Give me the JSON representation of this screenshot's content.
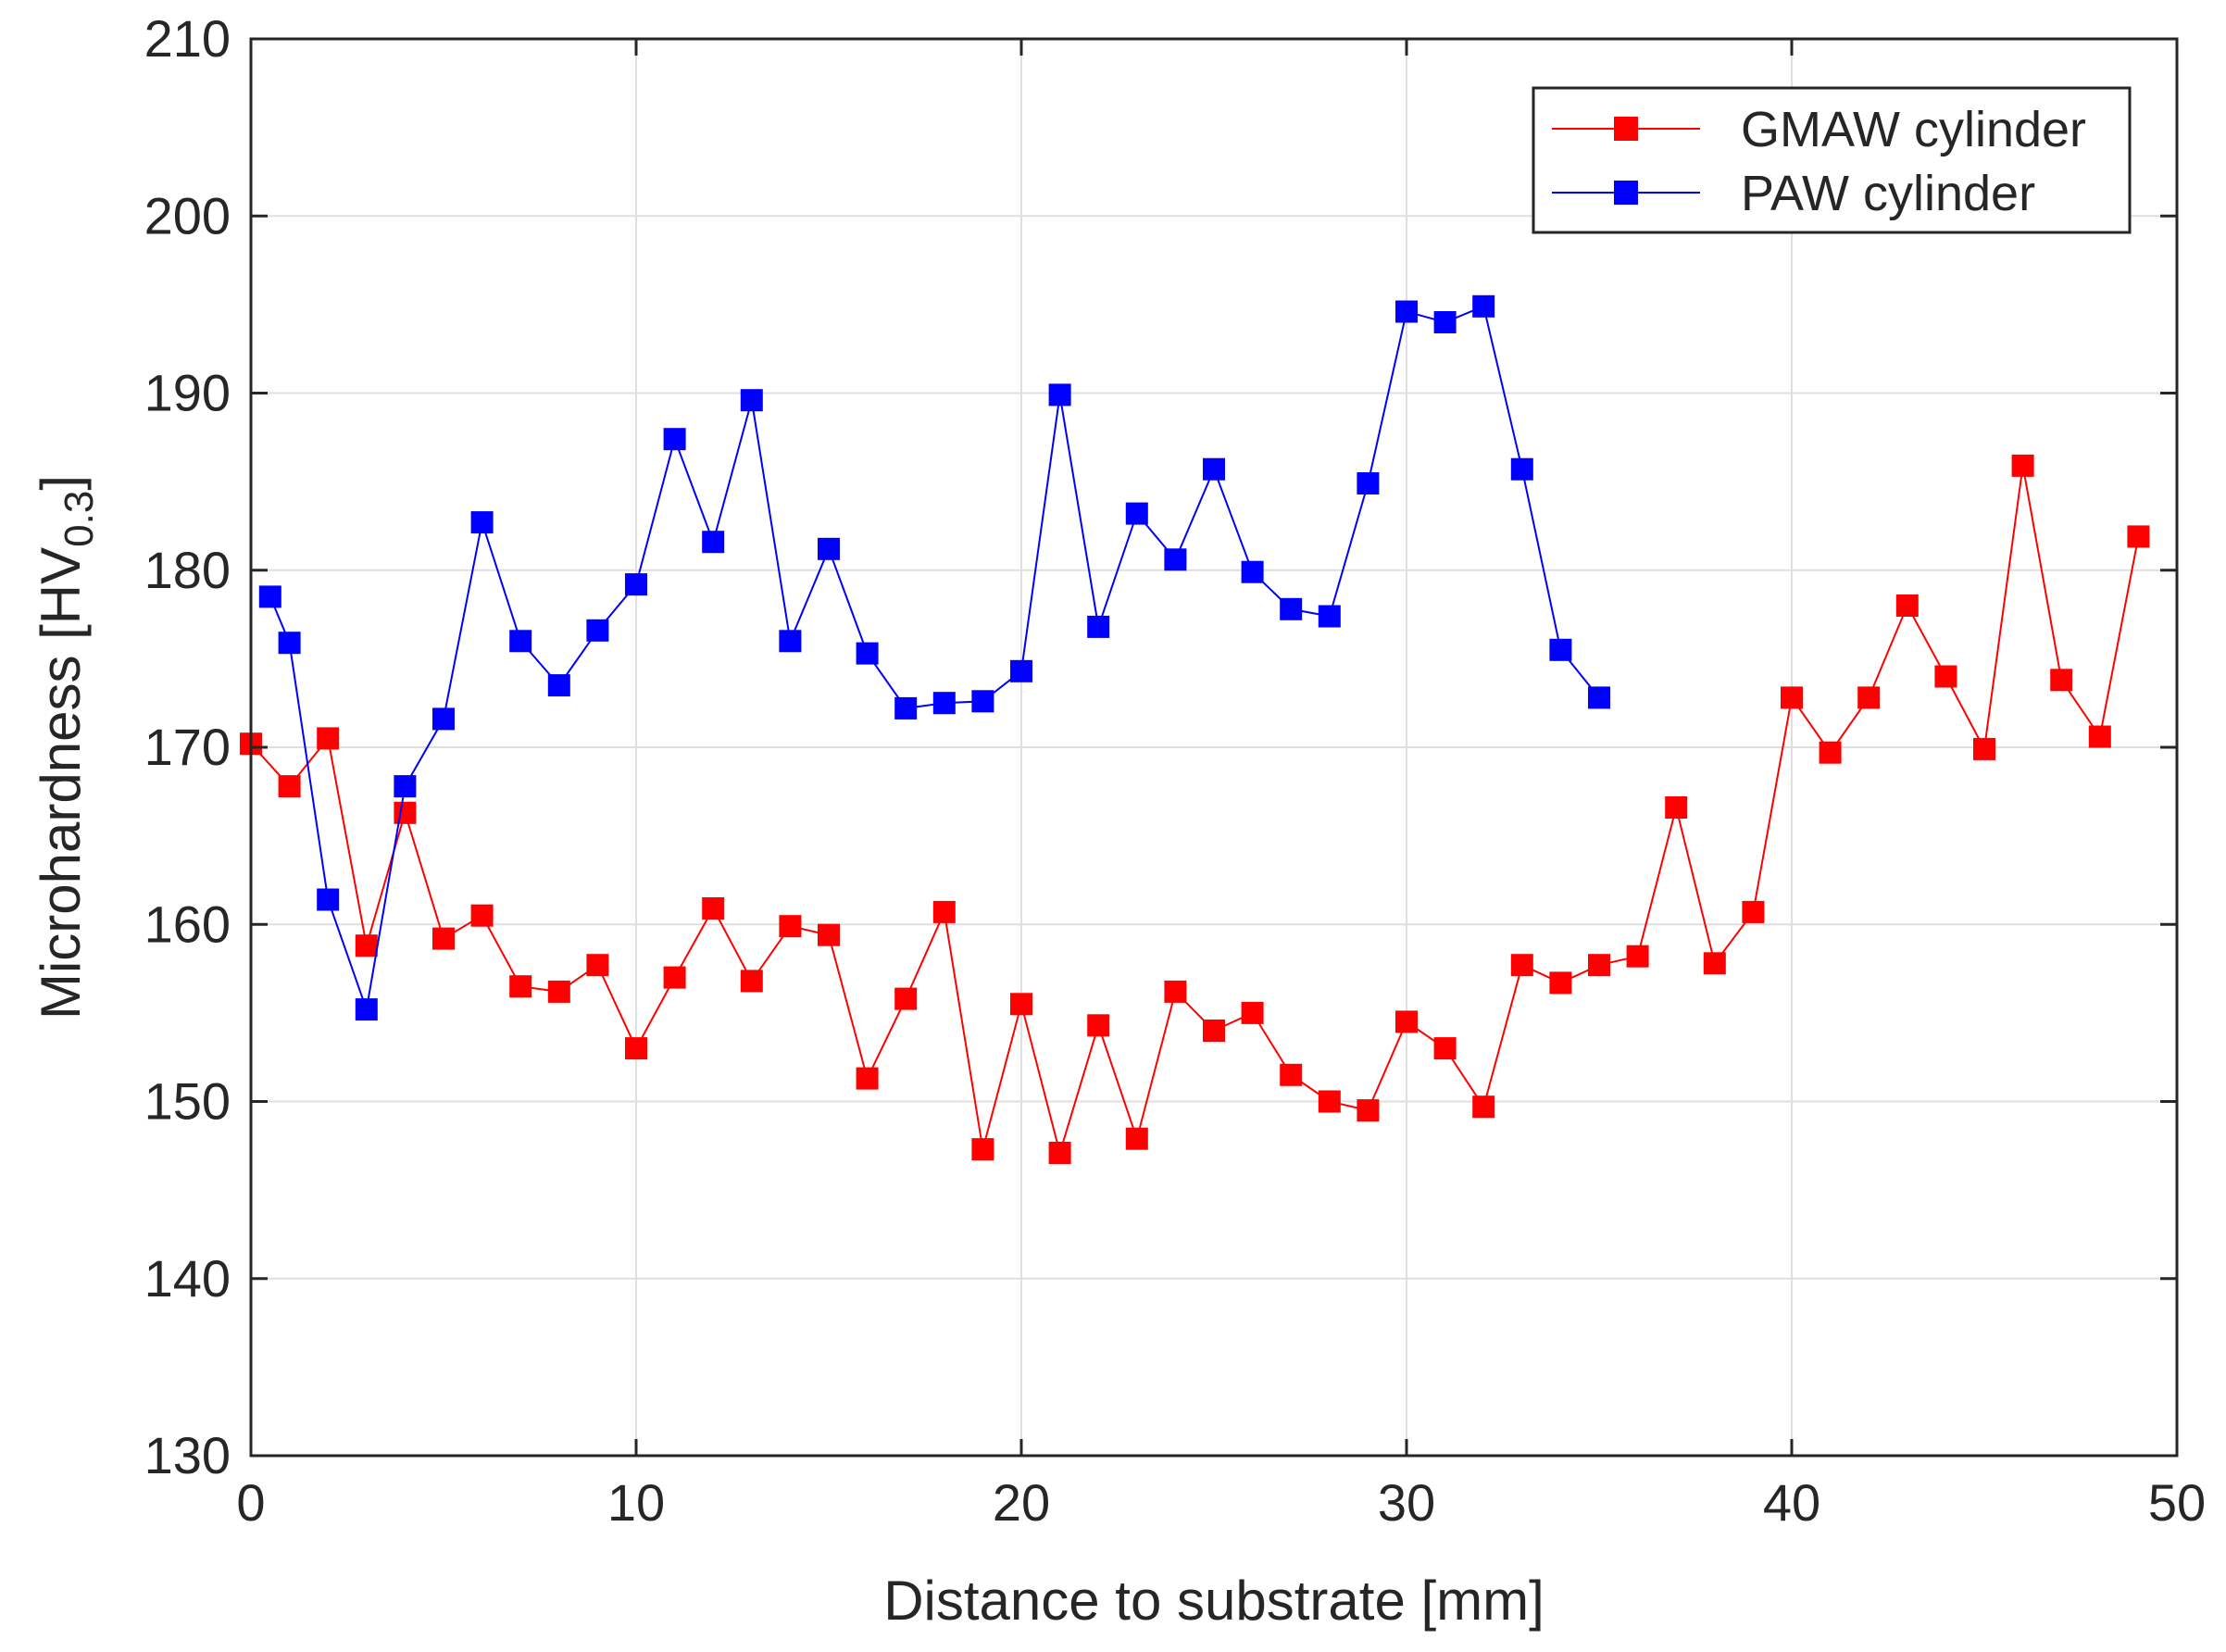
{
  "chart_data": {
    "type": "line",
    "xlabel": "Distance to substrate [mm]",
    "ylabel_main": "Microhardness [HV",
    "ylabel_sub": "0.3",
    "ylabel_end": "]",
    "xlim": [
      0,
      50
    ],
    "ylim": [
      130,
      210
    ],
    "xticks": [
      0,
      10,
      20,
      30,
      40,
      50
    ],
    "yticks": [
      130,
      140,
      150,
      160,
      170,
      180,
      190,
      200,
      210
    ],
    "xtick_labels": [
      "0",
      "10",
      "20",
      "30",
      "40",
      "50"
    ],
    "ytick_labels": [
      "130",
      "140",
      "150",
      "160",
      "170",
      "180",
      "190",
      "200",
      "210"
    ],
    "grid": true,
    "legend_position": "top-right",
    "series": [
      {
        "name": "GMAW cylinder",
        "color": "#ff0000",
        "marker": "square",
        "x": [
          0,
          1,
          2,
          3,
          4,
          5,
          6,
          7,
          8,
          9,
          10,
          11,
          12,
          13,
          14,
          15,
          16,
          17,
          18,
          19,
          20,
          21,
          22,
          23,
          24,
          25,
          26,
          27,
          28,
          29,
          30,
          31,
          32,
          33,
          34,
          35,
          36,
          37,
          38,
          39,
          40,
          41,
          42,
          43,
          44,
          45,
          46,
          47,
          48,
          49
        ],
        "y": [
          170.2,
          167.8,
          170.5,
          158.8,
          166.3,
          159.2,
          160.5,
          156.5,
          156.2,
          157.7,
          153.0,
          157.0,
          160.9,
          156.8,
          159.9,
          159.4,
          151.3,
          155.8,
          160.7,
          147.3,
          155.5,
          147.1,
          154.3,
          147.9,
          156.2,
          154.0,
          155.0,
          151.5,
          150.0,
          149.5,
          154.5,
          153.0,
          149.7,
          157.7,
          156.7,
          157.7,
          158.2,
          166.6,
          157.8,
          160.7,
          172.8,
          169.7,
          172.8,
          178.0,
          174.0,
          169.9,
          185.9,
          173.8,
          170.6,
          181.9
        ]
      },
      {
        "name": "PAW cylinder",
        "color": "#0000ff",
        "marker": "square",
        "x": [
          0.5,
          1,
          2,
          3,
          4,
          5,
          6,
          7,
          8,
          9,
          10,
          11,
          12,
          13,
          14,
          15,
          16,
          17,
          18,
          19,
          20,
          21,
          22,
          23,
          24,
          25,
          26,
          27,
          28,
          29,
          30,
          31,
          32,
          33,
          34,
          35
        ],
        "y": [
          178.5,
          175.9,
          161.4,
          155.2,
          167.8,
          171.6,
          182.7,
          176.0,
          173.5,
          176.6,
          179.2,
          187.4,
          181.6,
          189.6,
          176.0,
          181.2,
          175.3,
          172.2,
          172.5,
          172.6,
          174.3,
          189.9,
          176.8,
          183.2,
          180.6,
          185.7,
          179.9,
          177.8,
          177.4,
          184.9,
          194.6,
          194.0,
          194.9,
          185.7,
          175.5,
          172.8
        ]
      }
    ]
  }
}
